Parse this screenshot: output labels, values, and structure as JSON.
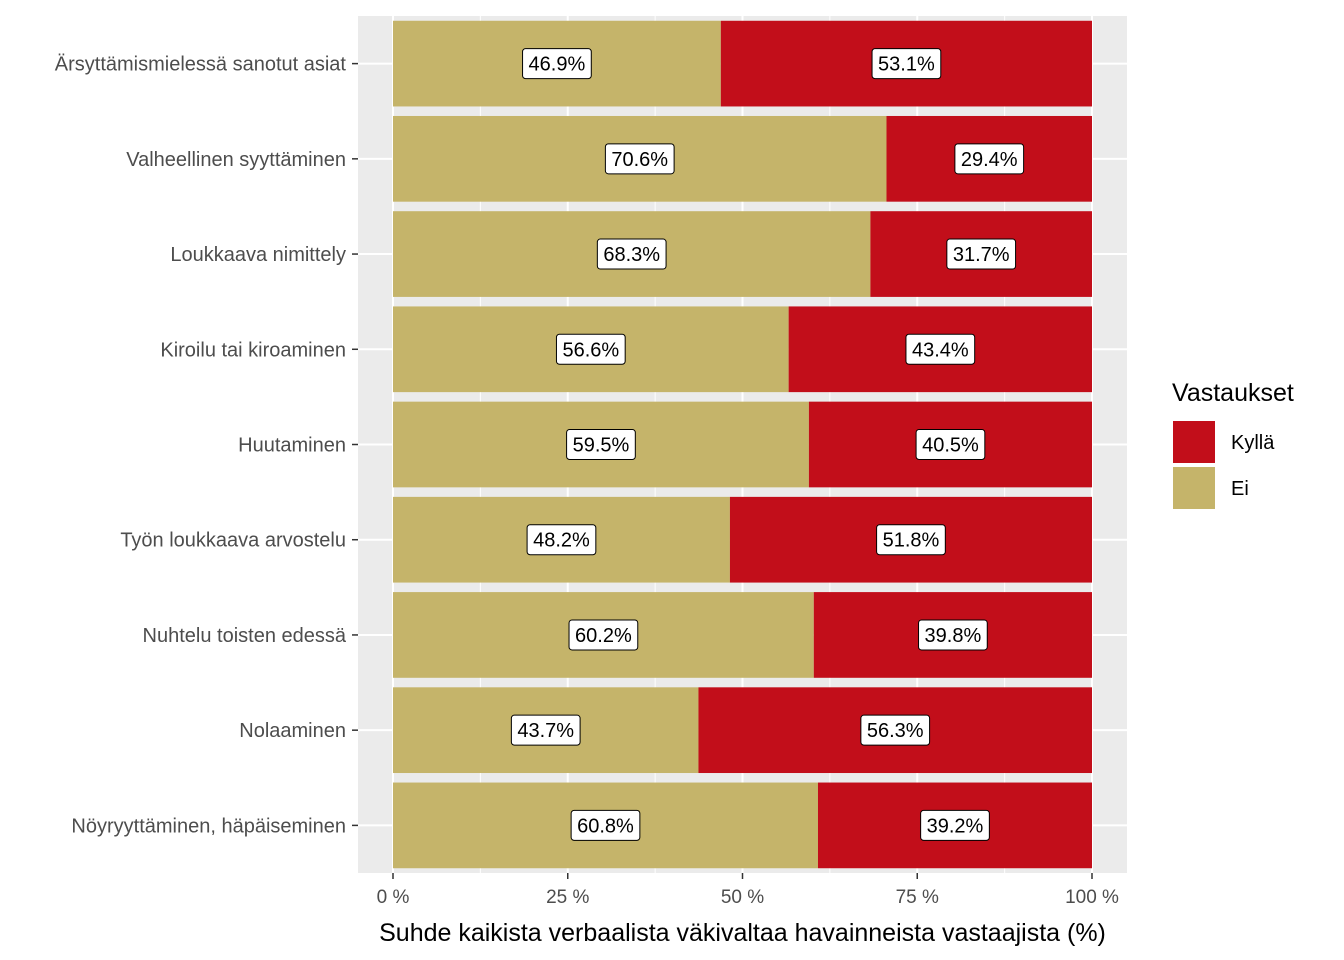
{
  "chart_data": {
    "type": "bar",
    "orientation": "horizontal",
    "stacked": true,
    "categories": [
      "Ärsyttämismielessä sanotut asiat",
      "Valheellinen syyttäminen",
      "Loukkaava nimittely",
      "Kiroilu tai kiroaminen",
      "Huutaminen",
      "Työn loukkaava arvostelu",
      "Nuhtelu toisten edessä",
      "Nolaaminen",
      "Nöyryyttäminen, häpäiseminen"
    ],
    "series": [
      {
        "name": "Ei",
        "color": "#c5b46a",
        "values": [
          46.9,
          70.6,
          68.3,
          56.6,
          59.5,
          48.2,
          60.2,
          43.7,
          60.8
        ],
        "labels": [
          "46.9%",
          "70.6%",
          "68.3%",
          "56.6%",
          "59.5%",
          "48.2%",
          "60.2%",
          "43.7%",
          "60.8%"
        ]
      },
      {
        "name": "Kyllä",
        "color": "#c20e1a",
        "values": [
          53.1,
          29.4,
          31.7,
          43.4,
          40.5,
          51.8,
          39.8,
          56.3,
          39.2
        ],
        "labels": [
          "53.1%",
          "29.4%",
          "31.7%",
          "43.4%",
          "40.5%",
          "51.8%",
          "39.8%",
          "56.3%",
          "39.2%"
        ]
      }
    ],
    "xlabel": "Suhde kaikista verbaalista väkivaltaa havainneista vastaajista (%)",
    "ylabel": "",
    "xlim": [
      0,
      100
    ],
    "xticks": [
      0,
      25,
      50,
      75,
      100
    ],
    "xtick_labels": [
      "0 %",
      "25 %",
      "50 %",
      "75 %",
      "100 %"
    ],
    "grid": true,
    "panel_background": "#ebebeb",
    "legend": {
      "title": "Vastaukset",
      "placement": "right",
      "entries": [
        {
          "name": "Kyllä",
          "color": "#c20e1a"
        },
        {
          "name": "Ei",
          "color": "#c5b46a"
        }
      ]
    }
  }
}
